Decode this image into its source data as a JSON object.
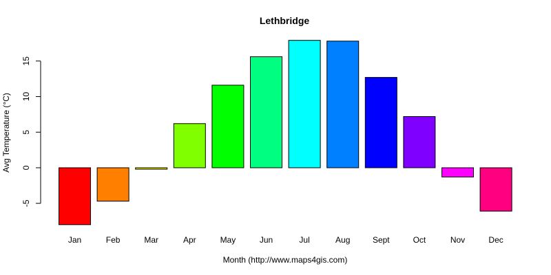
{
  "chart_data": {
    "type": "bar",
    "title": "Lethbridge",
    "xlabel": "Month (http://www.maps4gis.com)",
    "ylabel": "Avg Temperature (°C)",
    "categories": [
      "Jan",
      "Feb",
      "Mar",
      "Apr",
      "May",
      "Jun",
      "Jul",
      "Aug",
      "Sept",
      "Oct",
      "Nov",
      "Dec"
    ],
    "values": [
      -8.0,
      -4.7,
      -0.2,
      6.2,
      11.6,
      15.6,
      17.9,
      17.8,
      12.7,
      7.2,
      -1.3,
      -6.1
    ],
    "colors": [
      "#FF0000",
      "#FF8000",
      "#FFFF00",
      "#80FF00",
      "#00FF00",
      "#00FF80",
      "#00FFFF",
      "#0080FF",
      "#0000FF",
      "#8000FF",
      "#FF00FF",
      "#FF0080"
    ],
    "ylim": [
      -8,
      18
    ],
    "yticks": [
      -5,
      0,
      5,
      10,
      15
    ],
    "grid": false,
    "legend": "none"
  }
}
